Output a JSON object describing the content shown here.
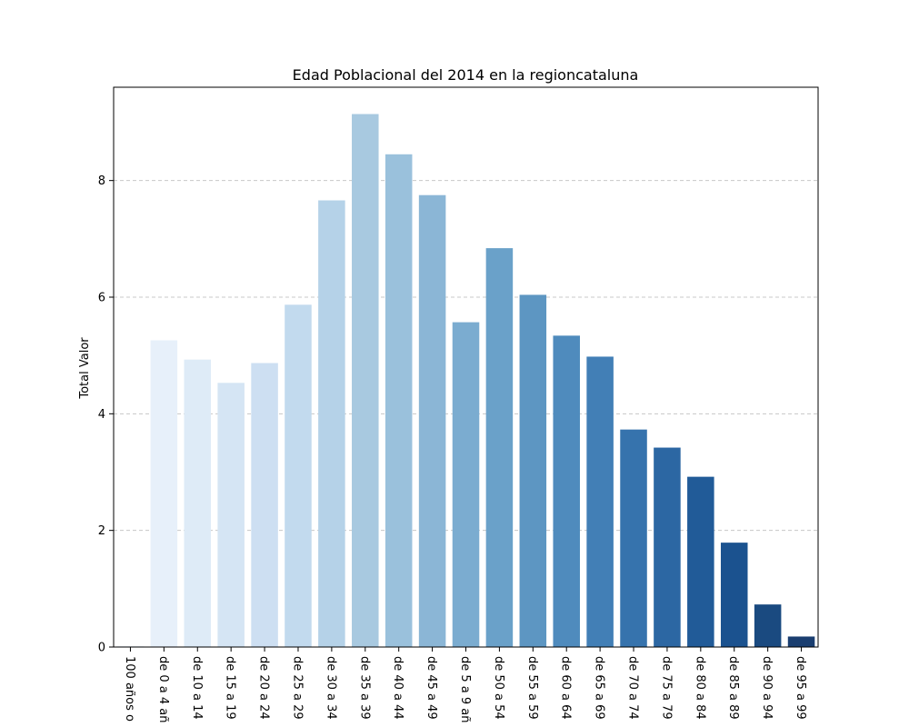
{
  "chart_data": {
    "type": "bar",
    "title": "Edad Poblacional del 2014 en la regioncataluna",
    "xlabel": "",
    "ylabel": "Total Valor",
    "ylim": [
      0,
      9.6
    ],
    "yticks": [
      0,
      2,
      4,
      6,
      8
    ],
    "grid": "y-dashed",
    "categories": [
      "100 años o",
      "de 0 a 4 añ",
      "de 10 a 14",
      "de 15 a 19",
      "de 20 a 24",
      "de 25 a 29",
      "de 30 a 34",
      "de 35 a 39",
      "de 40 a 44",
      "de 45 a 49",
      "de 5 a 9 añ",
      "de 50 a 54",
      "de 55 a 59",
      "de 60 a 64",
      "de 65 a 69",
      "de 70 a 74",
      "de 75 a 79",
      "de 80 a 84",
      "de 85 a 89",
      "de 90 a 94",
      "de 95 a 99"
    ],
    "values": [
      0.02,
      5.26,
      4.93,
      4.53,
      4.87,
      5.87,
      7.66,
      9.14,
      8.45,
      7.75,
      5.57,
      6.84,
      6.04,
      5.34,
      4.98,
      3.73,
      3.42,
      2.92,
      1.79,
      0.73,
      0.18
    ],
    "colors": [
      "#f1f6fc",
      "#e7f0fa",
      "#deebf7",
      "#d5e5f4",
      "#cddff2",
      "#c2daee",
      "#b5d2e8",
      "#a8c9e0",
      "#9ac1dc",
      "#8bb6d6",
      "#7bacd0",
      "#6aa1c9",
      "#5d96c2",
      "#4f8bbd",
      "#427fb6",
      "#3673ad",
      "#2c67a3",
      "#215b98",
      "#1b528f",
      "#1a4a80",
      "#1a3e70"
    ]
  }
}
